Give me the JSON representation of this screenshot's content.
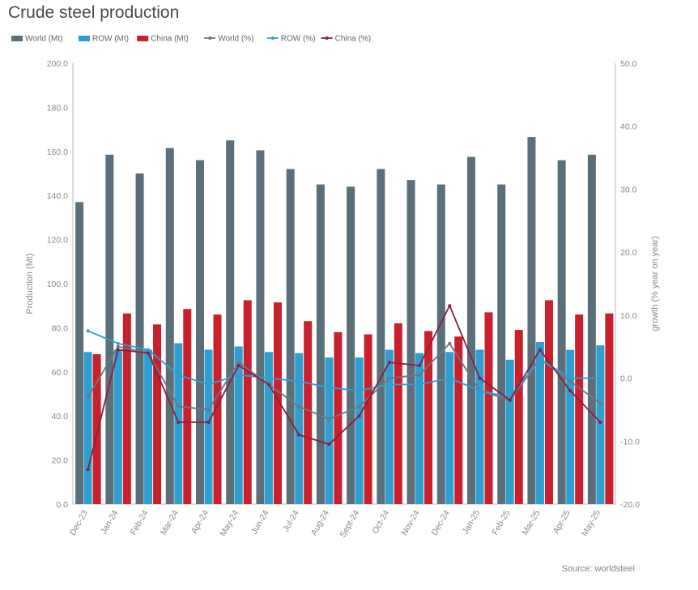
{
  "title": "Crude steel production",
  "source": "Source: worldsteel",
  "chart_data": {
    "type": "bar",
    "title": "Crude steel production",
    "categories": [
      "Dec-23",
      "Jan-24",
      "Feb-24",
      "Mar-24",
      "Apr-24",
      "May-24",
      "Jun-24",
      "Jul-24",
      "Aug-24",
      "Sept-24",
      "Oct-24",
      "Nov-24",
      "Dec-24",
      "Jan-25",
      "Feb-25",
      "Mar-25",
      "Apr-25",
      "May-25"
    ],
    "ylabel": "Production (Mt)",
    "y2label": "growth (% year on year)",
    "ylim": [
      0,
      200
    ],
    "y2lim": [
      -20,
      50
    ],
    "yticks": [
      "0.0",
      "20.0",
      "40.0",
      "60.0",
      "80.0",
      "100.0",
      "120.0",
      "140.0",
      "160.0",
      "180.0",
      "200.0"
    ],
    "y2ticks": [
      "-20.0",
      "-10.0",
      "0.0",
      "10.0",
      "20.0",
      "30.0",
      "40.0",
      "50.0"
    ],
    "grid": false,
    "legend_position": "top",
    "bar_series": [
      {
        "name": "World (Mt)",
        "color": "#5b6f7a",
        "values": [
          137,
          158.5,
          150,
          161.5,
          156,
          165,
          160.5,
          152,
          145,
          144,
          152,
          147,
          145,
          157.5,
          145,
          166.5,
          156,
          158.5
        ]
      },
      {
        "name": "ROW (Mt)",
        "color": "#2f9fd0",
        "values": [
          69,
          70,
          70,
          73,
          70,
          71.5,
          69,
          68.5,
          66.5,
          66.5,
          70,
          68.5,
          69,
          70,
          65.5,
          73.5,
          70,
          72
        ]
      },
      {
        "name": "China (Mt)",
        "color": "#c8202d",
        "values": [
          68,
          86.5,
          81.5,
          88.5,
          86,
          92.5,
          91.5,
          83,
          78,
          77,
          82,
          78.5,
          76,
          87,
          79,
          92.5,
          86,
          86.5
        ]
      }
    ],
    "line_series": [
      {
        "name": "World (%)",
        "color": "#6b7782",
        "values": [
          -3,
          5,
          4,
          -4.5,
          -5,
          2.5,
          -1,
          -4.5,
          -6.5,
          -4.5,
          0,
          0.5,
          5.5,
          -2,
          -3.5,
          3,
          -0.5,
          -4
        ]
      },
      {
        "name": "ROW (%)",
        "color": "#2f9fd0",
        "values": [
          7.5,
          5.5,
          4.5,
          0.5,
          -1,
          0.5,
          0,
          -0.5,
          -1.5,
          -2,
          -1,
          -1,
          0,
          -2,
          -3,
          3,
          0,
          0
        ]
      },
      {
        "name": "China (%)",
        "color": "#8a1f3d",
        "values": [
          -14.5,
          4.5,
          4,
          -7,
          -7,
          2,
          -1,
          -9,
          -10.5,
          -6,
          2.5,
          2,
          11.5,
          0,
          -3.5,
          4.5,
          -2,
          -7
        ]
      }
    ]
  }
}
